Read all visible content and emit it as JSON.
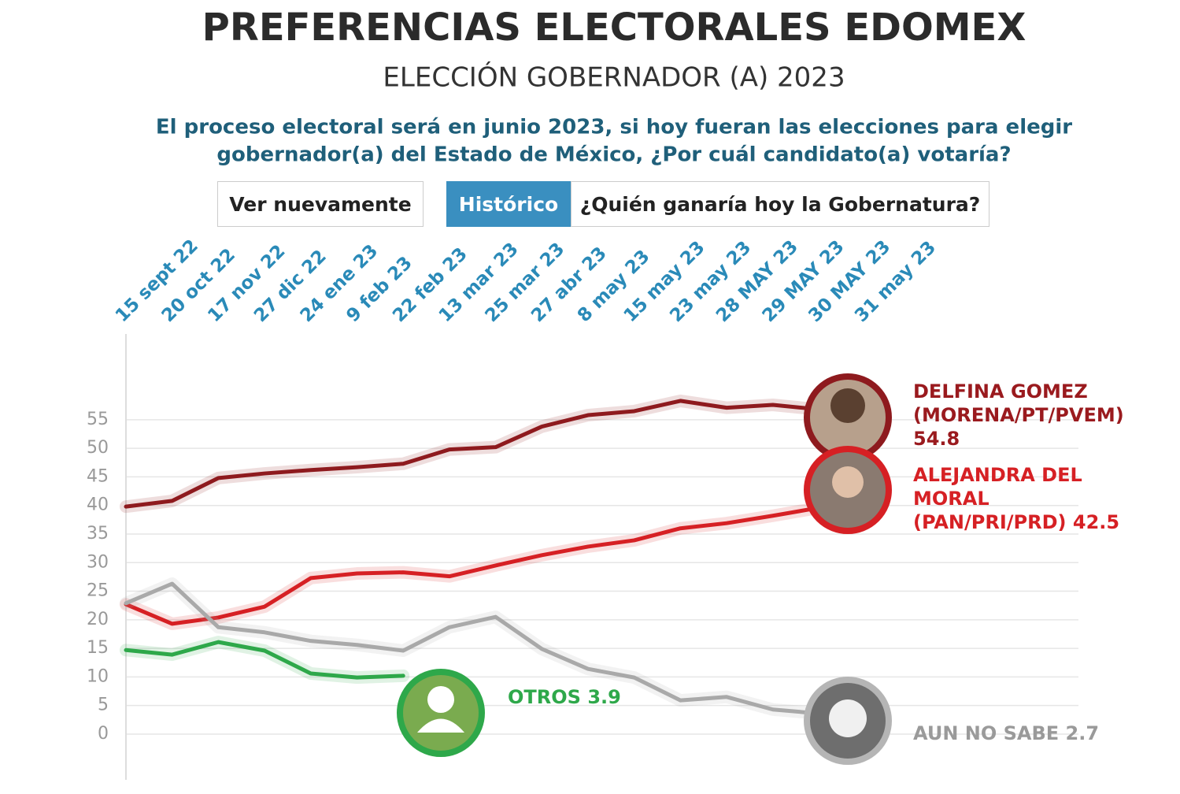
{
  "chart_data": {
    "type": "line",
    "title": "PREFERENCIAS ELECTORALES EDOMEX",
    "subtitle": "ELECCIÓN GOBERNADOR (A) 2023",
    "question": [
      "El proceso electoral será en junio 2023, si hoy fueran las elecciones para elegir",
      "gobernador(a) del Estado de México, ¿Por cuál candidato(a) votaría?"
    ],
    "buttons": [
      "Ver nuevamente",
      "Histórico",
      "¿Quién ganaría hoy la Gobernatura?"
    ],
    "categories": [
      "15 sept 22",
      "20 oct 22",
      "17 nov 22",
      "27 dic 22",
      "24 ene 23",
      "9 feb 23",
      "22 feb 23",
      "13 mar 23",
      "25 mar 23",
      "27 abr 23",
      "8 may 23",
      "15 may 23",
      "23 may 23",
      "28 MAY 23",
      "29 MAY 23",
      "30 MAY 23",
      "31 may 23"
    ],
    "series": [
      {
        "name": "DELFINA GOMEZ (MORENA/PT/PVEM)",
        "color": "#8e1a1e",
        "values": [
          39.8,
          40.8,
          44.8,
          45.6,
          46.2,
          46.7,
          47.3,
          49.8,
          50.2,
          53.8,
          55.8,
          56.5,
          58.3,
          57.1,
          57.6,
          56.8,
          54.8
        ]
      },
      {
        "name": "ALEJANDRA DEL MORAL (PAN/PRI/PRD)",
        "color": "#d62024",
        "values": [
          22.7,
          19.3,
          20.4,
          22.3,
          27.3,
          28.1,
          28.3,
          27.6,
          29.5,
          31.3,
          32.8,
          33.9,
          36.0,
          36.9,
          38.2,
          39.6,
          42.5
        ]
      },
      {
        "name": "OTROS",
        "color": "#2ea84a",
        "values": [
          14.7,
          13.9,
          16.1,
          14.6,
          10.6,
          9.9,
          10.2,
          null,
          null,
          null,
          null,
          null,
          null,
          null,
          null,
          null,
          3.9
        ]
      },
      {
        "name": "AUN NO SABE",
        "color": "#a9a9a9",
        "values": [
          22.9,
          26.3,
          18.7,
          17.8,
          16.3,
          15.6,
          14.6,
          18.7,
          20.5,
          14.9,
          11.4,
          9.9,
          5.9,
          6.5,
          4.3,
          3.6,
          2.7
        ]
      }
    ],
    "ylim": [
      -8,
      70
    ],
    "yticks": [
      0,
      5,
      10,
      15,
      20,
      25,
      30,
      35,
      40,
      45,
      50,
      55
    ],
    "grid": true
  }
}
